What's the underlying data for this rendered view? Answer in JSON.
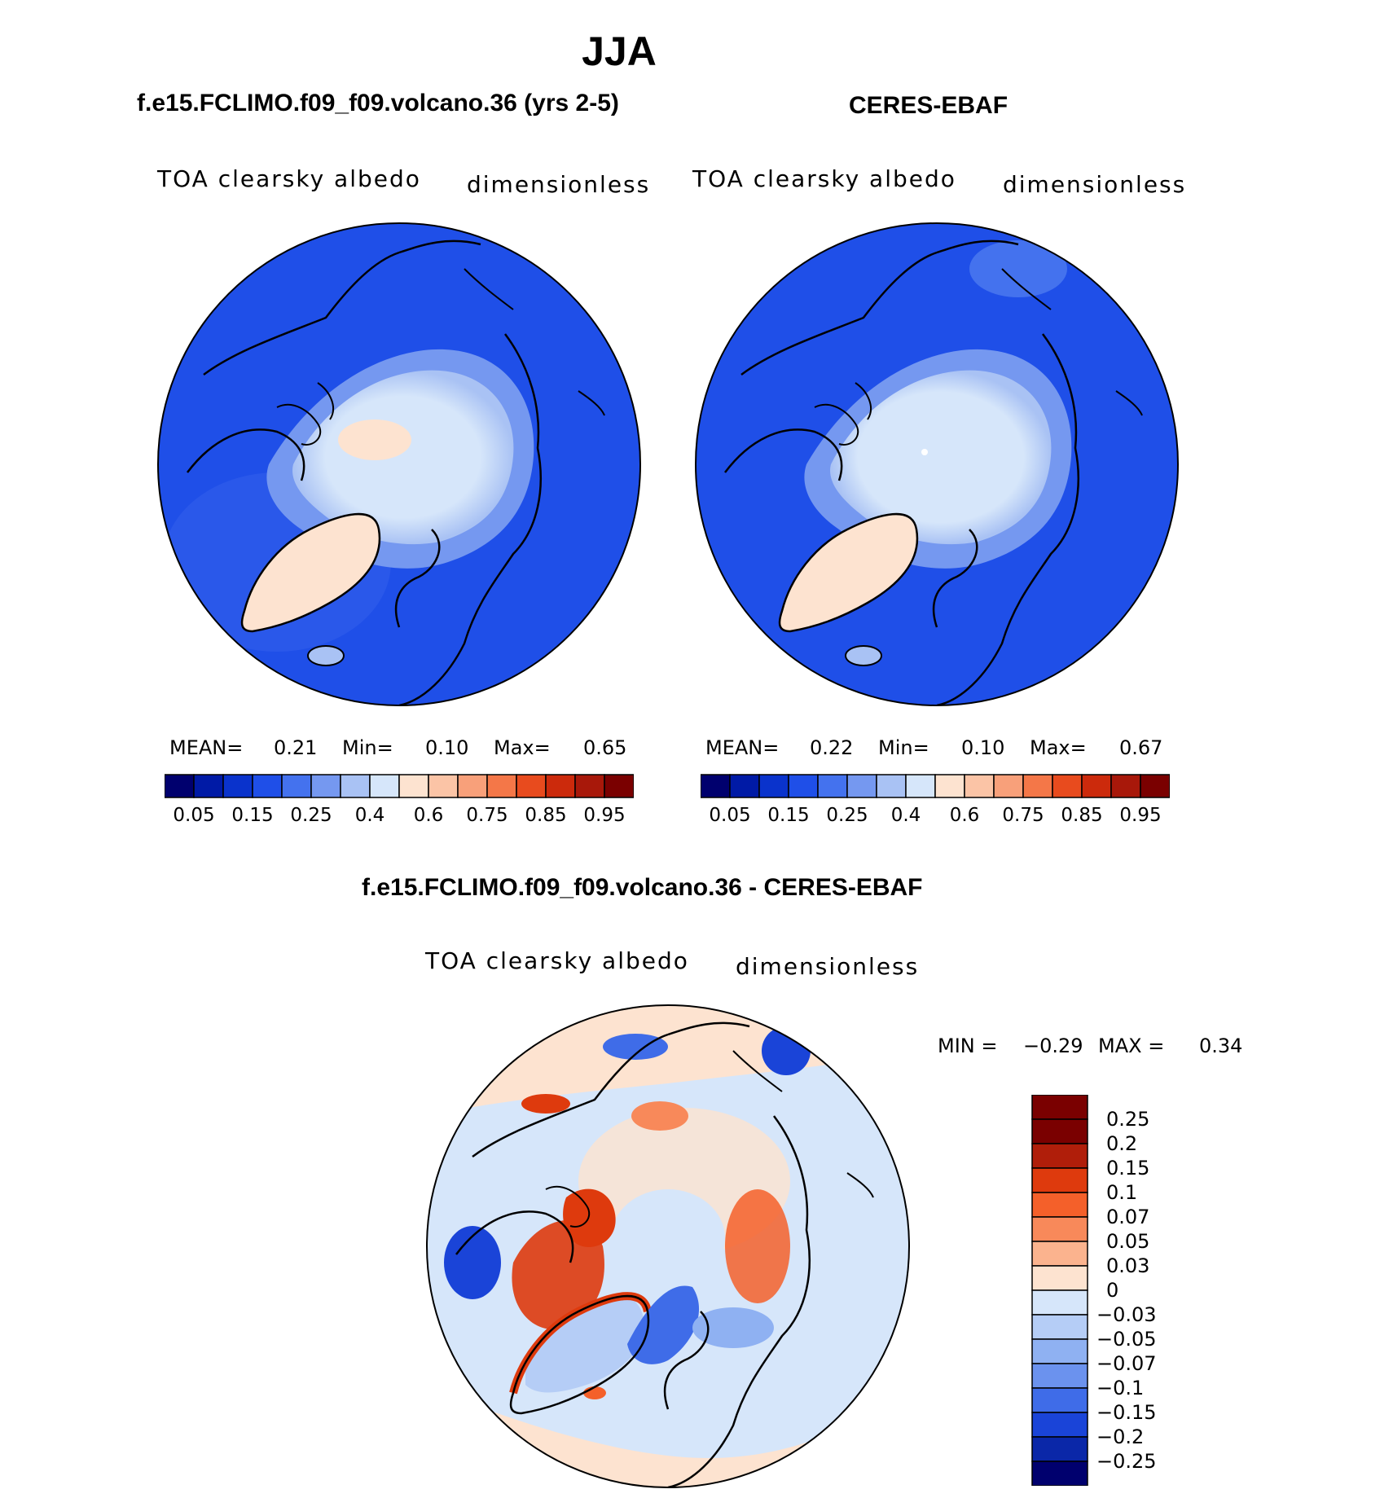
{
  "figure": {
    "title": "JJA"
  },
  "panels": {
    "model": {
      "case_title": "f.e15.FCLIMO.f09_f09.volcano.36 (yrs 2-5)",
      "variable": "TOA clearsky albedo",
      "units": "dimensionless",
      "stats": {
        "mean_label": "MEAN=",
        "mean": "0.21",
        "min_label": "Min=",
        "min": "0.10",
        "max_label": "Max=",
        "max": "0.65"
      }
    },
    "obs": {
      "case_title": "CERES-EBAF",
      "variable": "TOA clearsky albedo",
      "units": "dimensionless",
      "stats": {
        "mean_label": "MEAN=",
        "mean": "0.22",
        "min_label": "Min=",
        "min": "0.10",
        "max_label": "Max=",
        "max": "0.67"
      }
    },
    "diff": {
      "case_title": "f.e15.FCLIMO.f09_f09.volcano.36 - CERES-EBAF",
      "variable": "TOA clearsky albedo",
      "units": "dimensionless",
      "stats": {
        "min_label": "MIN =",
        "min": "−0.29",
        "max_label": "MAX =",
        "max": "0.34"
      }
    }
  },
  "chart_data": [
    {
      "type": "heatmap",
      "title": "f.e15.FCLIMO.f09_f09.volcano.36 (yrs 2-5)",
      "subtitle": "TOA clearsky albedo",
      "units": "dimensionless",
      "projection": "north polar stereographic",
      "mean": 0.21,
      "min": 0.1,
      "max": 0.65,
      "colorbar_ticks": [
        "0.05",
        "0.15",
        "0.25",
        "0.4",
        "0.6",
        "0.75",
        "0.85",
        "0.95"
      ],
      "colorbar_colors": [
        "#00006e",
        "#001aa6",
        "#0a33cc",
        "#1f4fe8",
        "#4472ee",
        "#7598f0",
        "#a9c2f4",
        "#d6e6fa",
        "#fde3d0",
        "#fbc4a6",
        "#f8a07a",
        "#f47748",
        "#e84b1e",
        "#cc2a0c",
        "#a8180a",
        "#7a0000"
      ],
      "regions": [
        {
          "name": "ocean",
          "value": 0.15
        },
        {
          "name": "arctic-sea-ice",
          "value": 0.45
        },
        {
          "name": "central-arctic",
          "value": 0.55
        },
        {
          "name": "greenland",
          "value": 0.6
        },
        {
          "name": "iceland",
          "value": 0.4
        }
      ]
    },
    {
      "type": "heatmap",
      "title": "CERES-EBAF",
      "subtitle": "TOA clearsky albedo",
      "units": "dimensionless",
      "projection": "north polar stereographic",
      "mean": 0.22,
      "min": 0.1,
      "max": 0.67,
      "colorbar_ticks": [
        "0.05",
        "0.15",
        "0.25",
        "0.4",
        "0.6",
        "0.75",
        "0.85",
        "0.95"
      ],
      "colorbar_colors": [
        "#00006e",
        "#001aa6",
        "#0a33cc",
        "#1f4fe8",
        "#4472ee",
        "#7598f0",
        "#a9c2f4",
        "#d6e6fa",
        "#fde3d0",
        "#fbc4a6",
        "#f8a07a",
        "#f47748",
        "#e84b1e",
        "#cc2a0c",
        "#a8180a",
        "#7a0000"
      ],
      "regions": [
        {
          "name": "ocean",
          "value": 0.15
        },
        {
          "name": "arctic-sea-ice",
          "value": 0.45
        },
        {
          "name": "central-arctic",
          "value": 0.5
        },
        {
          "name": "greenland",
          "value": 0.6
        },
        {
          "name": "iceland",
          "value": 0.4
        }
      ]
    },
    {
      "type": "heatmap",
      "title": "f.e15.FCLIMO.f09_f09.volcano.36 - CERES-EBAF",
      "subtitle": "TOA clearsky albedo",
      "units": "dimensionless",
      "projection": "north polar stereographic",
      "min": -0.29,
      "max": 0.34,
      "colorbar_orientation": "vertical",
      "colorbar_ticks": [
        "0.25",
        "0.2",
        "0.15",
        "0.1",
        "0.07",
        "0.05",
        "0.03",
        "0",
        "−0.03",
        "−0.05",
        "−0.07",
        "−0.1",
        "−0.15",
        "−0.2",
        "−0.25"
      ],
      "colorbar_colors_top_to_bottom": [
        "#7a0000",
        "#b01e0a",
        "#de3a0d",
        "#f4602a",
        "#f8895a",
        "#fbb38e",
        "#fde3d0",
        "#d6e6fa",
        "#b5cdf6",
        "#8fb1f2",
        "#6b92ee",
        "#3f6ce8",
        "#1a44d8",
        "#0a27a8",
        "#00006e"
      ],
      "regions": [
        {
          "name": "background-ocean",
          "value": -0.03
        },
        {
          "name": "north-atlantic-band",
          "value": 0.03
        },
        {
          "name": "canadian-archipelago",
          "value": 0.1
        },
        {
          "name": "greenland-interior",
          "value": -0.05
        },
        {
          "name": "barents-sea",
          "value": -0.1
        },
        {
          "name": "siberia-coast",
          "value": 0.07
        },
        {
          "name": "hudson-bay",
          "value": -0.15
        }
      ]
    }
  ]
}
